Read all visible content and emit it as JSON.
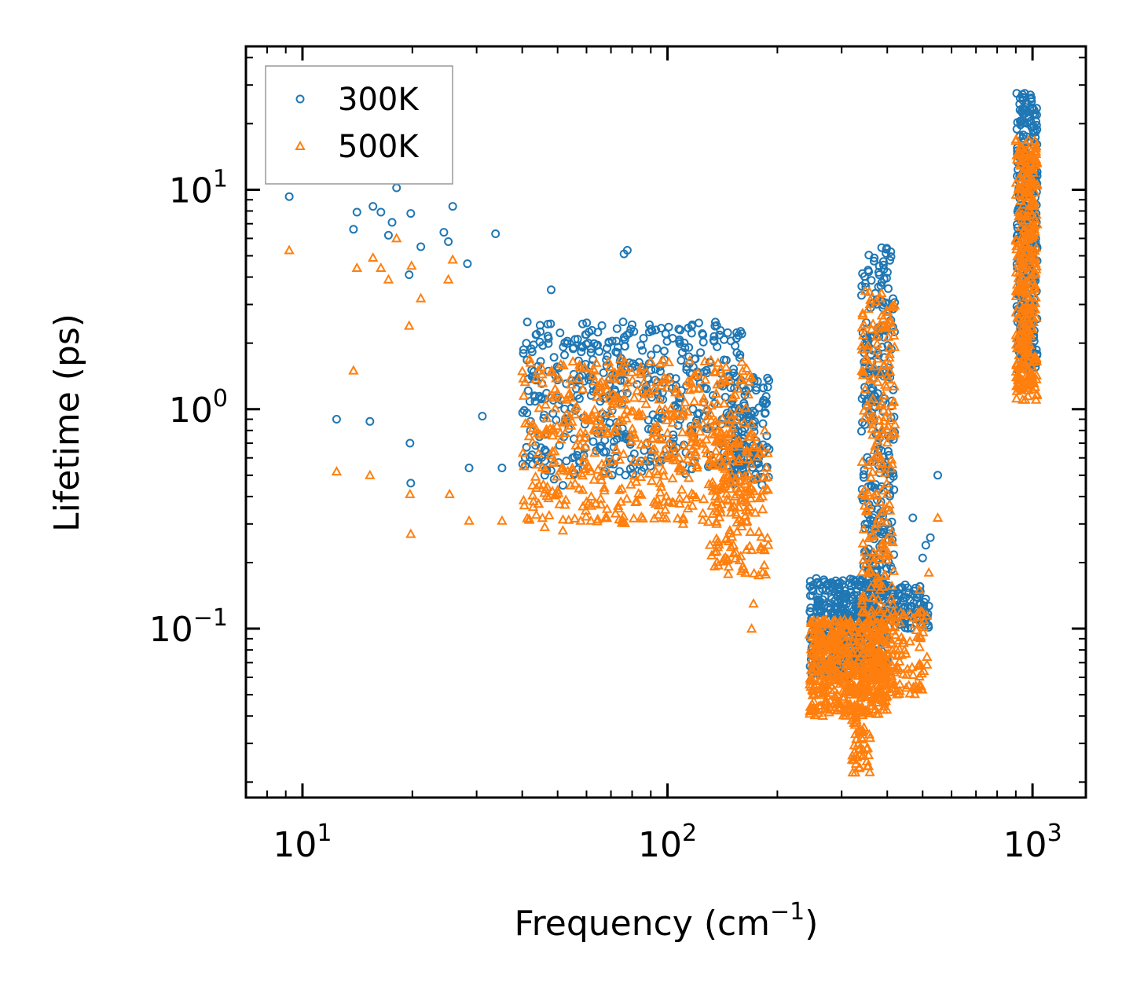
{
  "chart_data": {
    "type": "scatter",
    "x_scale": "log",
    "y_scale": "log",
    "xlim": [
      7,
      1400
    ],
    "ylim": [
      0.017,
      45
    ],
    "x_major_ticks": [
      {
        "value": 10,
        "base": "10",
        "exp": "1"
      },
      {
        "value": 100,
        "base": "10",
        "exp": "2"
      },
      {
        "value": 1000,
        "base": "10",
        "exp": "3"
      }
    ],
    "y_major_ticks": [
      {
        "value": 0.1,
        "base": "10",
        "exp": "−1"
      },
      {
        "value": 1,
        "base": "10",
        "exp": "0"
      },
      {
        "value": 10,
        "base": "10",
        "exp": "1"
      }
    ],
    "xlabel": {
      "text": "Frequency (cm",
      "sup": "−1",
      "tail": ")"
    },
    "ylabel": "Lifetime (ps)",
    "legend_position": "top-left",
    "grid": false,
    "series": [
      {
        "name": "300K",
        "marker": "circle",
        "color": "#1f77b4",
        "generator": [
          {
            "xrange": [
              40,
              165
            ],
            "yrange": [
              0.5,
              2.5
            ],
            "count": 500
          },
          {
            "xrange": [
              150,
              190
            ],
            "yrange": [
              0.45,
              1.4
            ],
            "count": 120
          },
          {
            "xrange": [
              245,
              400
            ],
            "yrange": [
              0.06,
              0.17
            ],
            "count": 500
          },
          {
            "xrange": [
              340,
              420
            ],
            "yrange": [
              0.15,
              5.5
            ],
            "count": 260
          },
          {
            "xrange": [
              400,
              520
            ],
            "yrange": [
              0.1,
              0.16
            ],
            "count": 90
          },
          {
            "xrange": [
              905,
              1030
            ],
            "yrange": [
              1.5,
              28
            ],
            "count": 350
          }
        ],
        "points": [
          [
            9.2,
            9.3
          ],
          [
            12.4,
            0.9
          ],
          [
            13.8,
            6.6
          ],
          [
            14.1,
            7.9
          ],
          [
            15.3,
            0.88
          ],
          [
            15.6,
            8.4
          ],
          [
            16.4,
            7.9
          ],
          [
            17.2,
            6.2
          ],
          [
            17.6,
            7.1
          ],
          [
            18.1,
            10.2
          ],
          [
            19.6,
            4.1
          ],
          [
            19.7,
            0.7
          ],
          [
            19.8,
            0.46
          ],
          [
            19.8,
            7.8
          ],
          [
            21.1,
            5.5
          ],
          [
            24.4,
            6.4
          ],
          [
            25.1,
            5.8
          ],
          [
            25.8,
            8.4
          ],
          [
            28.3,
            4.6
          ],
          [
            28.6,
            0.54
          ],
          [
            31.1,
            0.93
          ],
          [
            33.8,
            6.3
          ],
          [
            35.2,
            0.54
          ],
          [
            46.1,
            0.5
          ],
          [
            48.9,
            0.48
          ],
          [
            51.7,
            0.45
          ],
          [
            48.0,
            3.5
          ],
          [
            76.0,
            5.1
          ],
          [
            77.6,
            5.3
          ],
          [
            550.0,
            0.5
          ],
          [
            470.0,
            0.32
          ],
          [
            500.0,
            0.21
          ],
          [
            510.0,
            0.24
          ],
          [
            525.0,
            0.26
          ]
        ]
      },
      {
        "name": "500K",
        "marker": "triangle",
        "color": "#ff7f0e",
        "generator": [
          {
            "xrange": [
              40,
              170
            ],
            "yrange": [
              0.3,
              1.7
            ],
            "count": 560
          },
          {
            "xrange": [
              130,
              190
            ],
            "yrange": [
              0.17,
              0.8
            ],
            "count": 140
          },
          {
            "xrange": [
              245,
              400
            ],
            "yrange": [
              0.04,
              0.11
            ],
            "count": 520
          },
          {
            "xrange": [
              340,
              420
            ],
            "yrange": [
              0.05,
              3.5
            ],
            "count": 260
          },
          {
            "xrange": [
              320,
              360
            ],
            "yrange": [
              0.022,
              0.045
            ],
            "count": 60
          },
          {
            "xrange": [
              400,
              520
            ],
            "yrange": [
              0.05,
              0.12
            ],
            "count": 90
          },
          {
            "xrange": [
              900,
              1030
            ],
            "yrange": [
              1.1,
              17
            ],
            "count": 360
          }
        ],
        "points": [
          [
            9.2,
            5.3
          ],
          [
            12.4,
            0.52
          ],
          [
            13.8,
            1.5
          ],
          [
            14.1,
            4.4
          ],
          [
            15.3,
            0.5
          ],
          [
            15.6,
            4.9
          ],
          [
            16.4,
            4.4
          ],
          [
            17.2,
            3.9
          ],
          [
            18.1,
            6.0
          ],
          [
            19.6,
            2.4
          ],
          [
            19.7,
            0.41
          ],
          [
            19.8,
            0.27
          ],
          [
            19.9,
            4.5
          ],
          [
            21.1,
            3.2
          ],
          [
            25.1,
            3.9
          ],
          [
            25.3,
            0.41
          ],
          [
            25.8,
            4.8
          ],
          [
            28.6,
            0.31
          ],
          [
            35.2,
            0.31
          ],
          [
            46.1,
            0.29
          ],
          [
            51.7,
            0.28
          ],
          [
            44.5,
            0.45
          ],
          [
            170.0,
            0.1
          ],
          [
            172.0,
            0.13
          ],
          [
            550.0,
            0.32
          ],
          [
            520.0,
            0.18
          ],
          [
            490.0,
            0.15
          ]
        ]
      }
    ]
  }
}
